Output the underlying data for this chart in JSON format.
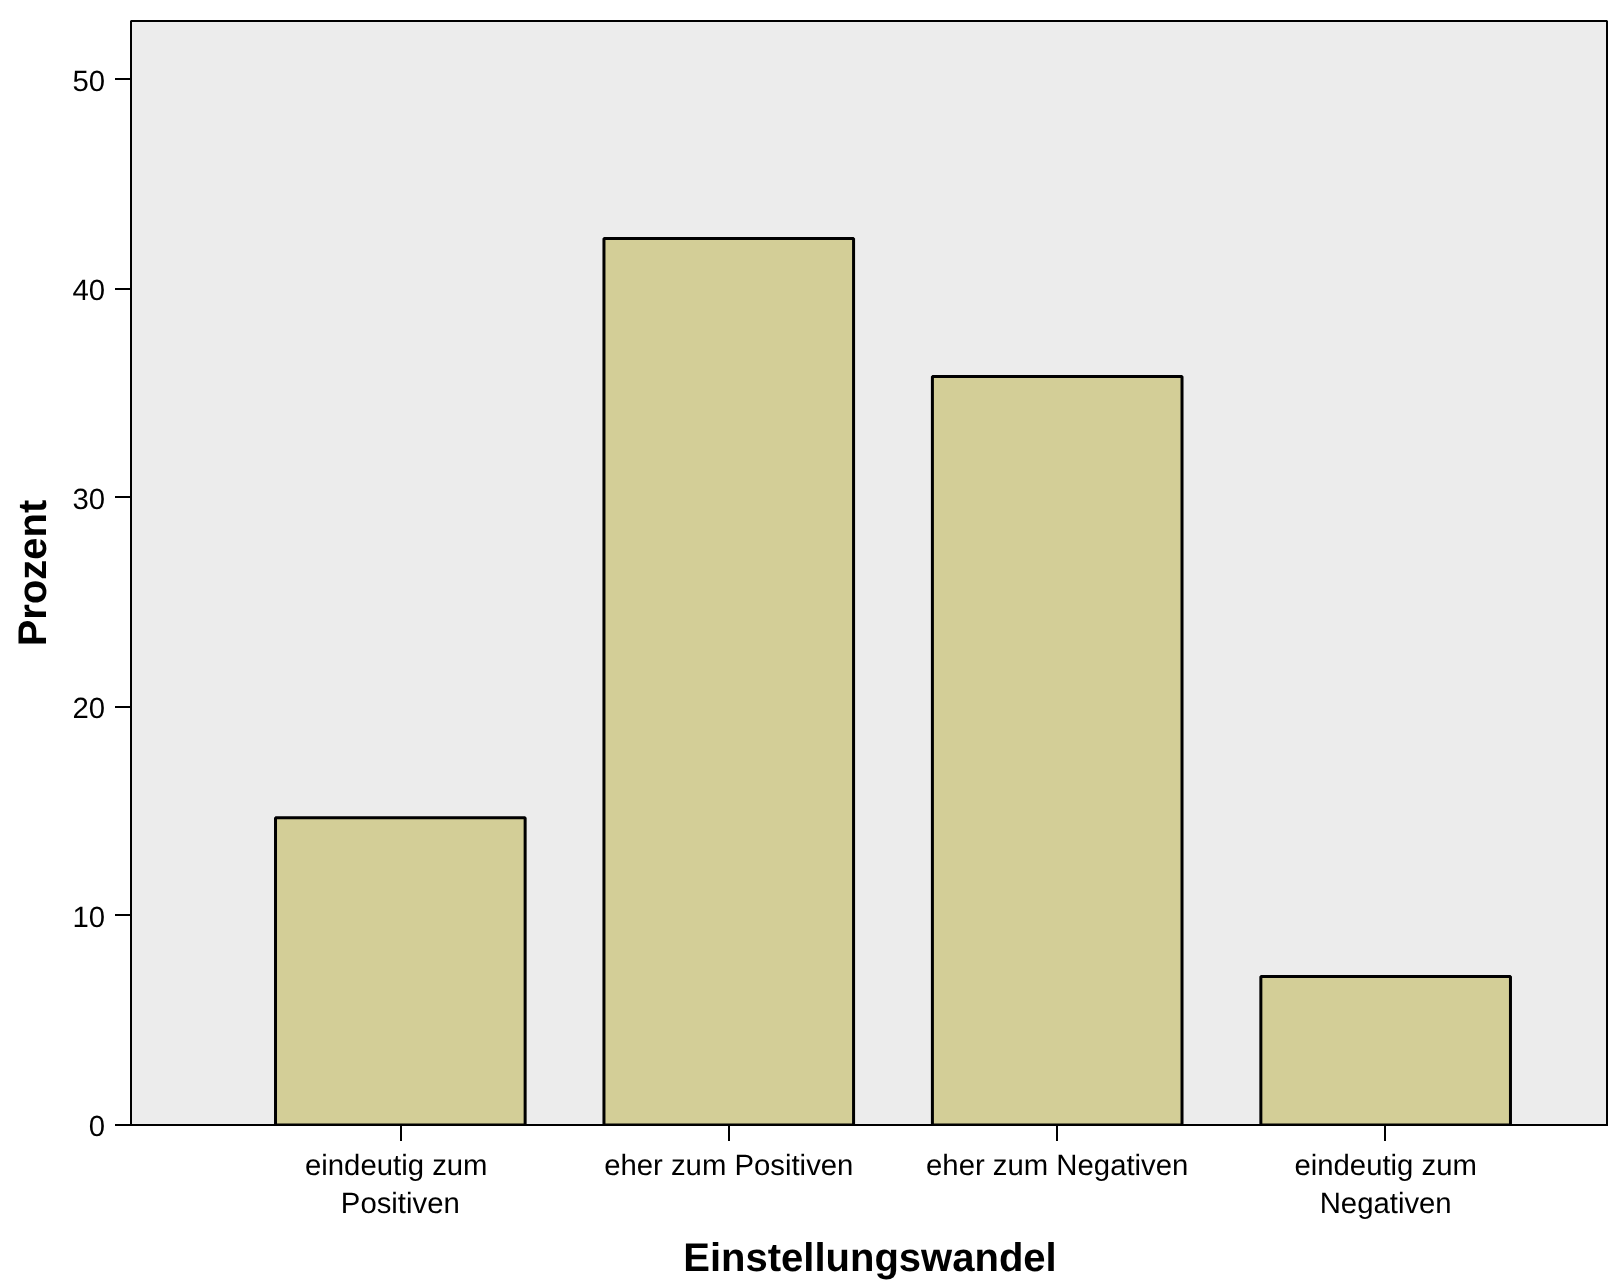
{
  "chart_data": {
    "type": "bar",
    "xlabel": "Einstellungswandel",
    "ylabel": "Prozent",
    "categories": [
      "eindeutig  zum\nPositiven",
      "eher zum Positiven",
      "eher zum Negativen",
      "eindeutig zum\nNegativen"
    ],
    "values": [
      14.7,
      42.4,
      35.8,
      7.1
    ],
    "color": "#d3ce97",
    "ylim": [
      0,
      52.8
    ],
    "yticks": [
      0,
      10,
      20,
      30,
      40,
      50
    ],
    "grid": false
  }
}
